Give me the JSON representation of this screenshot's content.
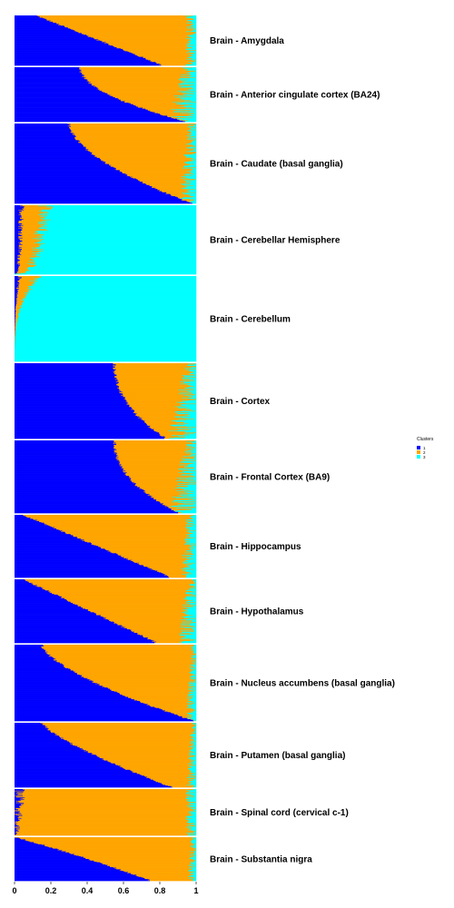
{
  "chart_data": {
    "type": "bar",
    "orientation": "horizontal-stacked",
    "title": "",
    "xlabel": "",
    "ylabel": "",
    "xlim": [
      0,
      1
    ],
    "x_ticks": [
      "0",
      "0.2",
      "0.4",
      "0.6",
      "0.8",
      "1"
    ],
    "x_tick_values": [
      0,
      0.2,
      0.4,
      0.6,
      0.8,
      1
    ],
    "grid": false,
    "legend": {
      "title": "Clusters",
      "placement": "right",
      "entries": [
        {
          "label": "1",
          "color": "#0000ff"
        },
        {
          "label": "2",
          "color": "#ffa500"
        },
        {
          "label": "3",
          "color": "#00ffff"
        }
      ]
    },
    "panels": [
      {
        "label": "Brain - Amygdala",
        "samples": 88,
        "c1_start": 0.12,
        "c1_end": 0.81,
        "shape": 1.0,
        "c3_frac": 0.06,
        "c3_rise": 0.0
      },
      {
        "label": "Brain - Anterior cingulate cortex (BA24)",
        "samples": 109,
        "c1_start": 0.36,
        "c1_end": 0.94,
        "shape": 1.9,
        "c3_frac": 0.08,
        "c3_rise": 0.08
      },
      {
        "label": "Brain - Caudate (basal ganglia)",
        "samples": 144,
        "c1_start": 0.3,
        "c1_end": 0.97,
        "shape": 1.7,
        "c3_frac": 0.05,
        "c3_rise": 0.05
      },
      {
        "label": "Brain - Cerebellar Hemisphere",
        "samples": 125,
        "c1_start": 0.0,
        "c1_end": 0.16,
        "shape": 0.3,
        "c3_frac": 0.0,
        "c3_rise": 0.0
      },
      {
        "label": "Brain - Cerebellum",
        "samples": 154,
        "c1_start": 0.0,
        "c1_end": 0.12,
        "shape": 3.0,
        "c3_frac": 0.0,
        "c3_rise": 0.0
      },
      {
        "label": "Brain - Cortex",
        "samples": 136,
        "c1_start": 0.55,
        "c1_end": 0.83,
        "shape": 2.2,
        "c3_frac": 0.06,
        "c3_rise": 0.12
      },
      {
        "label": "Brain - Frontal Cortex (BA9)",
        "samples": 129,
        "c1_start": 0.55,
        "c1_end": 0.9,
        "shape": 2.2,
        "c3_frac": 0.06,
        "c3_rise": 0.1
      },
      {
        "label": "Brain - Hippocampus",
        "samples": 111,
        "c1_start": 0.05,
        "c1_end": 0.86,
        "shape": 1.0,
        "c3_frac": 0.06,
        "c3_rise": 0.03
      },
      {
        "label": "Brain - Hypothalamus",
        "samples": 108,
        "c1_start": 0.05,
        "c1_end": 0.78,
        "shape": 1.0,
        "c3_frac": 0.06,
        "c3_rise": 0.04
      },
      {
        "label": "Brain - Nucleus accumbens (basal ganglia)",
        "samples": 130,
        "c1_start": 0.15,
        "c1_end": 0.98,
        "shape": 1.5,
        "c3_frac": 0.03,
        "c3_rise": 0.03
      },
      {
        "label": "Brain - Putamen (basal ganglia)",
        "samples": 111,
        "c1_start": 0.15,
        "c1_end": 0.86,
        "shape": 1.3,
        "c3_frac": 0.03,
        "c3_rise": 0.03
      },
      {
        "label": "Brain - Spinal cord (cervical c-1)",
        "samples": 83,
        "c1_start": 0.0,
        "c1_end": 0.1,
        "shape": 0.35,
        "c3_frac": 0.03,
        "c3_rise": 0.0
      },
      {
        "label": "Brain - Substantia nigra",
        "samples": 80,
        "c1_start": 0.0,
        "c1_end": 0.75,
        "shape": 0.9,
        "c3_frac": 0.03,
        "c3_rise": 0.02
      }
    ]
  }
}
